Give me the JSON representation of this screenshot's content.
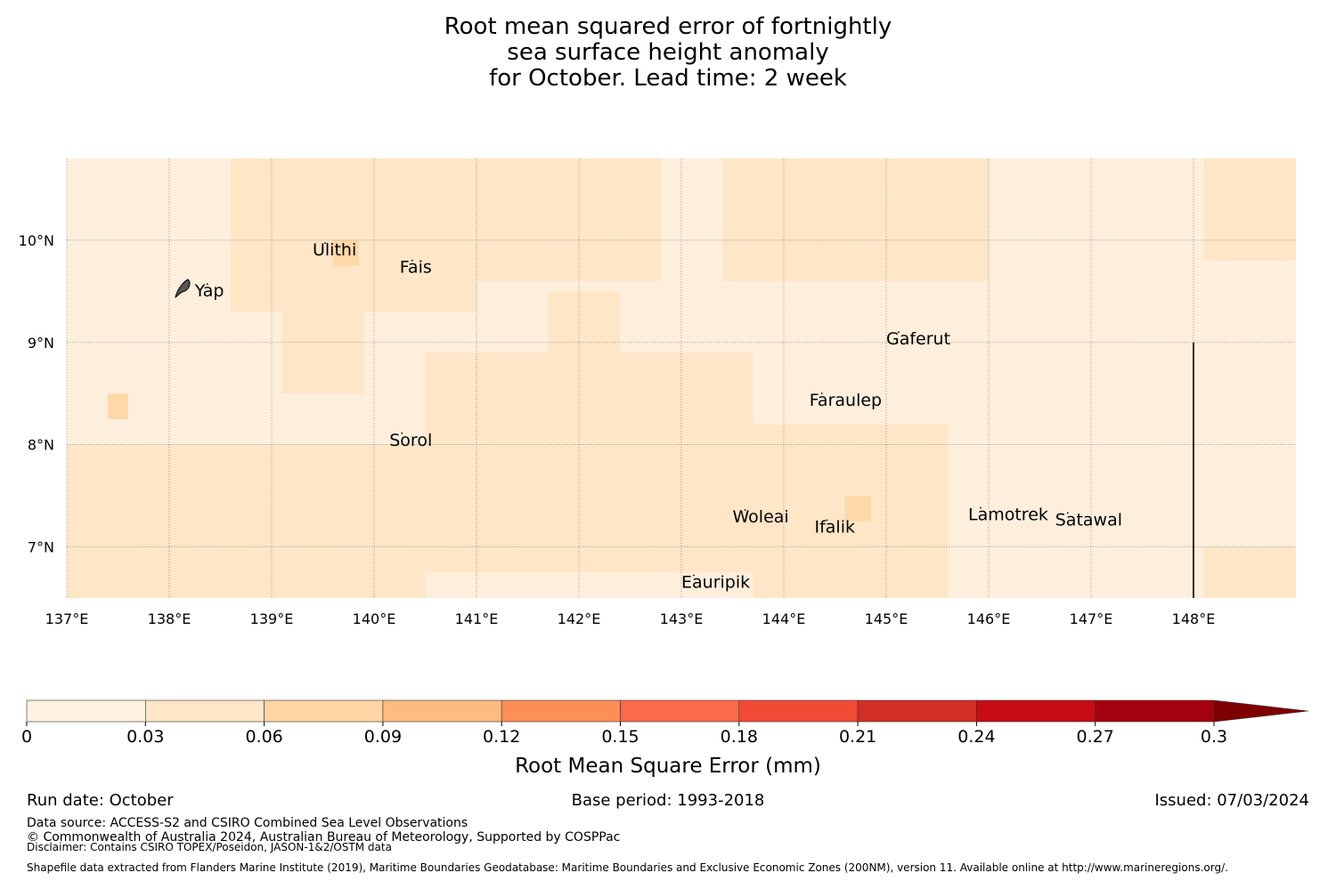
{
  "title_lines": [
    "Root mean squared error of fortnightly",
    "sea surface height anomaly",
    "for October. Lead time: 2 week"
  ],
  "map": {
    "lon_range": [
      137,
      149
    ],
    "lat_range": [
      6.5,
      10.8
    ],
    "lon_ticks": [
      137,
      138,
      139,
      140,
      141,
      142,
      143,
      144,
      145,
      146,
      147,
      148
    ],
    "lon_tick_labels": [
      "137°E",
      "138°E",
      "139°E",
      "140°E",
      "141°E",
      "142°E",
      "143°E",
      "144°E",
      "145°E",
      "146°E",
      "147°E",
      "148°E"
    ],
    "lat_ticks": [
      10,
      9,
      8,
      7
    ],
    "lat_tick_labels": [
      "10°N",
      "9°N",
      "8°N",
      "7°N"
    ],
    "background_color": "#feefdd",
    "grid_regions": [
      {
        "lon": [
          137,
          149
        ],
        "lat": [
          6.5,
          10.8
        ],
        "color": "#feefdd"
      },
      {
        "lon": [
          138.6,
          141.0
        ],
        "lat": [
          9.3,
          10.8
        ],
        "color": "#fee6c7"
      },
      {
        "lon": [
          141.0,
          142.8
        ],
        "lat": [
          9.6,
          10.8
        ],
        "color": "#fee6c7"
      },
      {
        "lon": [
          139.1,
          139.9
        ],
        "lat": [
          8.5,
          9.4
        ],
        "color": "#fee6c7"
      },
      {
        "lon": [
          141.7,
          142.4
        ],
        "lat": [
          8.5,
          9.5
        ],
        "color": "#fee6c7"
      },
      {
        "lon": [
          140.5,
          143.7
        ],
        "lat": [
          6.75,
          8.9
        ],
        "color": "#fee6c7"
      },
      {
        "lon": [
          137.0,
          140.5
        ],
        "lat": [
          6.5,
          8.0
        ],
        "color": "#fee6c7"
      },
      {
        "lon": [
          143.7,
          145.6
        ],
        "lat": [
          6.5,
          8.2
        ],
        "color": "#fee6c7"
      },
      {
        "lon": [
          143.4,
          146.0
        ],
        "lat": [
          9.6,
          10.8
        ],
        "color": "#fee6c7"
      },
      {
        "lon": [
          148.1,
          149.0
        ],
        "lat": [
          9.8,
          10.8
        ],
        "color": "#fee6c7"
      },
      {
        "lon": [
          148.1,
          149.0
        ],
        "lat": [
          6.5,
          7.0
        ],
        "color": "#fee6c7"
      },
      {
        "lon": [
          137.4,
          137.6
        ],
        "lat": [
          8.25,
          8.5
        ],
        "color": "#fdd8a8"
      },
      {
        "lon": [
          139.6,
          139.85
        ],
        "lat": [
          9.75,
          10.0
        ],
        "color": "#fdd8a8"
      },
      {
        "lon": [
          144.6,
          144.85
        ],
        "lat": [
          7.25,
          7.5
        ],
        "color": "#fdd8a8"
      }
    ],
    "boundary_line": {
      "lon": 148,
      "lat": [
        6.5,
        9.0
      ],
      "color": "#000000"
    },
    "islands": [
      {
        "name": "Yap",
        "lon": 138.25,
        "lat": 9.45
      },
      {
        "name": "Ulithi",
        "lon": 139.4,
        "lat": 9.85
      },
      {
        "name": "Fais",
        "lon": 140.25,
        "lat": 9.68
      },
      {
        "name": "Gaferut",
        "lon": 145.0,
        "lat": 8.98
      },
      {
        "name": "Faraulep",
        "lon": 144.25,
        "lat": 8.38
      },
      {
        "name": "Sorol",
        "lon": 140.15,
        "lat": 7.99
      },
      {
        "name": "Woleai",
        "lon": 143.5,
        "lat": 7.24
      },
      {
        "name": "Ifalik",
        "lon": 144.3,
        "lat": 7.14
      },
      {
        "name": "Lamotrek",
        "lon": 145.8,
        "lat": 7.26
      },
      {
        "name": "Satawal",
        "lon": 146.65,
        "lat": 7.21
      },
      {
        "name": "Eauripik",
        "lon": 143.0,
        "lat": 6.6
      }
    ]
  },
  "colorbar": {
    "ticks": [
      "0",
      "0.03",
      "0.06",
      "0.09",
      "0.12",
      "0.15",
      "0.18",
      "0.21",
      "0.24",
      "0.27",
      "0.3"
    ],
    "colors": [
      "#fff1e0",
      "#fee6c7",
      "#fdd6a4",
      "#fdbb80",
      "#fc8f56",
      "#fb6a4a",
      "#f34a36",
      "#d22f26",
      "#c60c12",
      "#a50010"
    ],
    "extend_color": "#7f0000",
    "label": "Root Mean Square Error (mm)"
  },
  "footer": {
    "run_date": "Run date: October",
    "base_period": "Base period: 1993-2018",
    "issued": "Issued: 07/03/2024",
    "data_source": "Data source: ACCESS-S2 and CSIRO Combined Sea Level Observations",
    "copyright": "© Commonwealth of Australia 2024, Australian Bureau of Meteorology, Supported by COSPPac",
    "disclaimer": "Disclaimer: Contains CSIRO TOPEX/Poseidon, JASON-1&2/OSTM data",
    "shapefile": "Shapefile data extracted from Flanders Marine Institute (2019), Maritime Boundaries Geodatabase: Maritime Boundaries and Exclusive Economic Zones (200NM), version 11. Available online at http://www.marineregions.org/."
  }
}
